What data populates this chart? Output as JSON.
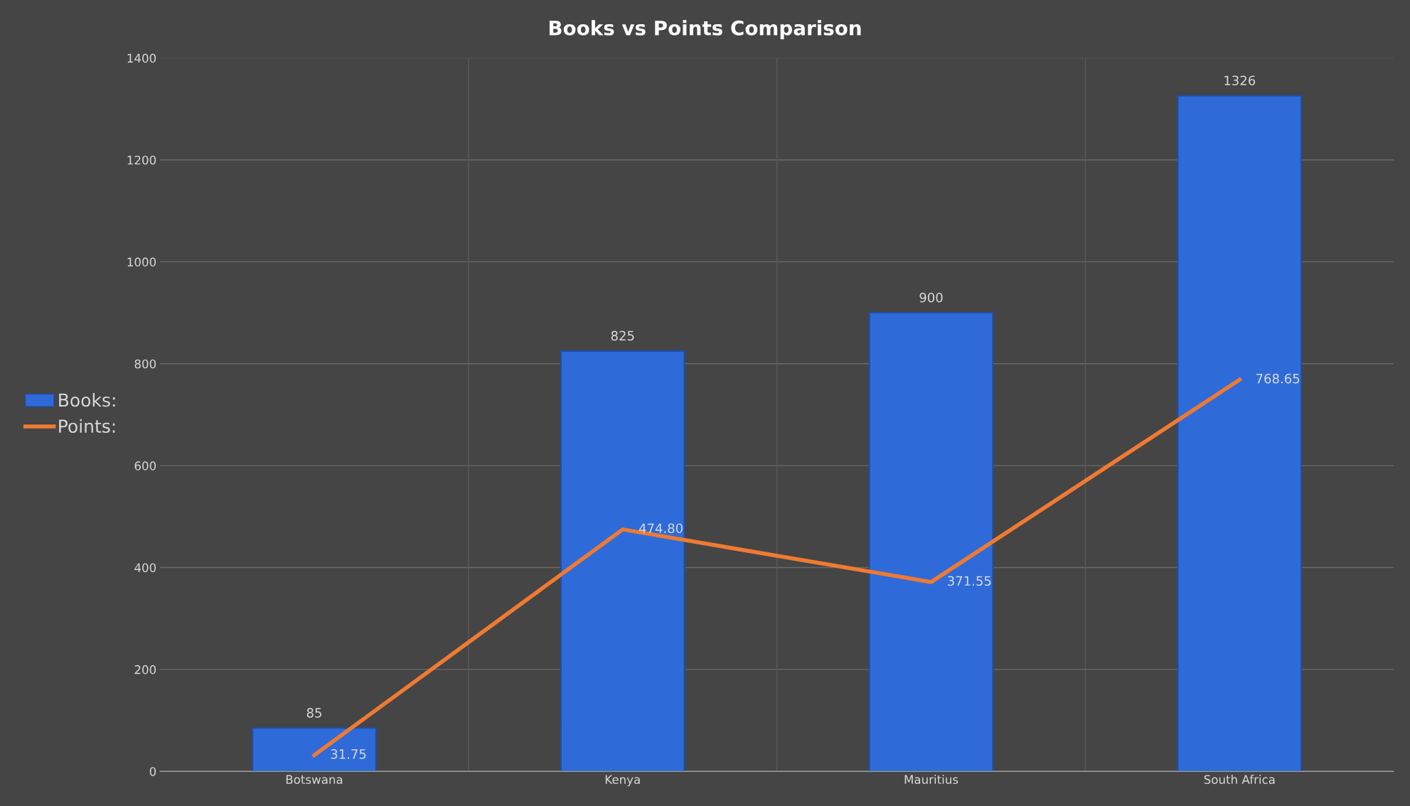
{
  "chart_data": {
    "type": "bar",
    "title": "Books vs Points Comparison",
    "categories": [
      "Botswana",
      "Kenya",
      "Mauritius",
      "South Africa"
    ],
    "series": [
      {
        "name": "Books:",
        "color": "#2f6bd8",
        "values": [
          85,
          825,
          900,
          1326
        ],
        "value_labels": [
          "85",
          "825",
          "900",
          "1326"
        ]
      },
      {
        "name": "Points:",
        "type": "line",
        "color": "#f07a32",
        "values": [
          31.75,
          474.8,
          371.55,
          768.65
        ],
        "value_labels": [
          "31.75",
          "474.80",
          "371.55",
          "768.65"
        ]
      }
    ],
    "ylim": [
      0,
      1400
    ],
    "yticks": [
      0,
      200,
      400,
      600,
      800,
      1000,
      1200,
      1400
    ],
    "grid": true,
    "legend": "left",
    "marker": "none",
    "line_style": "solid"
  }
}
